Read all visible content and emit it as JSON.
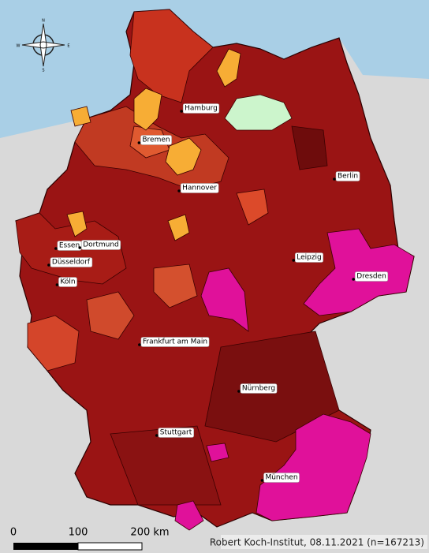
{
  "compass": {
    "north": "N",
    "south": "S",
    "west": "W",
    "east": "E"
  },
  "cities": [
    "Hamburg",
    "Bremen",
    "Berlin",
    "Hannover",
    "Essen",
    "Dortmund",
    "Düsseldorf",
    "Köln",
    "Leipzig",
    "Dresden",
    "Frankfurt am Main",
    "Nürnberg",
    "Stuttgart",
    "München"
  ],
  "scale": {
    "start": "0",
    "middle": "100",
    "end": "200 km"
  },
  "credit": "Robert Koch-Institut, 08.11.2021 (n=167213)"
}
